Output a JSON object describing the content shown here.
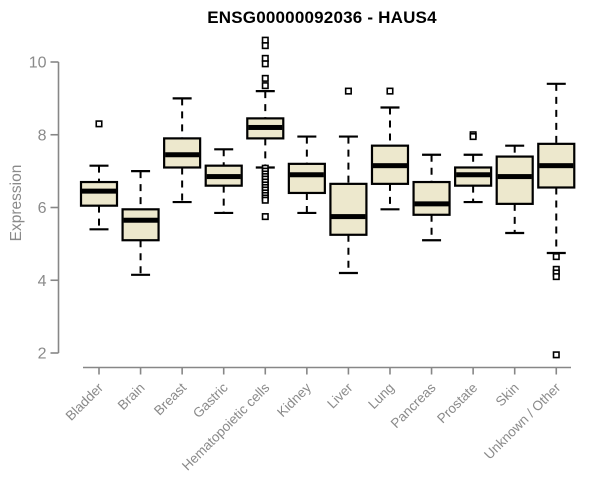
{
  "chart_data": {
    "type": "boxplot",
    "title": "ENSG00000092036 - HAUS4",
    "ylabel": "Expression",
    "xlabel": "",
    "ylim": [
      2,
      10
    ],
    "yticks": [
      2,
      4,
      6,
      8,
      10
    ],
    "grid": false,
    "legend": "none",
    "categories": [
      "Bladder",
      "Brain",
      "Breast",
      "Gastric",
      "Hematopoietic cells",
      "Kidney",
      "Liver",
      "Lung",
      "Pancreas",
      "Prostate",
      "Skin",
      "Unknown / Other"
    ],
    "series": [
      {
        "category": "Bladder",
        "whisker_low": 5.4,
        "q1": 6.05,
        "median": 6.45,
        "q3": 6.7,
        "whisker_high": 7.15,
        "outliers": [
          8.3
        ]
      },
      {
        "category": "Brain",
        "whisker_low": 4.15,
        "q1": 5.1,
        "median": 5.65,
        "q3": 5.95,
        "whisker_high": 7.0,
        "outliers": []
      },
      {
        "category": "Breast",
        "whisker_low": 6.15,
        "q1": 7.1,
        "median": 7.45,
        "q3": 7.9,
        "whisker_high": 9.0,
        "outliers": []
      },
      {
        "category": "Gastric",
        "whisker_low": 5.85,
        "q1": 6.6,
        "median": 6.85,
        "q3": 7.15,
        "whisker_high": 7.6,
        "outliers": []
      },
      {
        "category": "Hematopoietic cells",
        "whisker_low": 7.1,
        "q1": 7.9,
        "median": 8.2,
        "q3": 8.45,
        "whisker_high": 9.2,
        "outliers": [
          10.6,
          10.45,
          10.1,
          9.95,
          9.55,
          9.35,
          7.08,
          7.0,
          6.92,
          6.85,
          6.78,
          6.7,
          6.62,
          6.55,
          6.48,
          6.4,
          6.33,
          6.26,
          6.2,
          5.75
        ]
      },
      {
        "category": "Kidney",
        "whisker_low": 5.85,
        "q1": 6.4,
        "median": 6.9,
        "q3": 7.2,
        "whisker_high": 7.95,
        "outliers": []
      },
      {
        "category": "Liver",
        "whisker_low": 4.2,
        "q1": 5.25,
        "median": 5.75,
        "q3": 6.65,
        "whisker_high": 7.95,
        "outliers": [
          9.2
        ]
      },
      {
        "category": "Lung",
        "whisker_low": 5.95,
        "q1": 6.65,
        "median": 7.15,
        "q3": 7.7,
        "whisker_high": 8.75,
        "outliers": [
          9.2
        ]
      },
      {
        "category": "Pancreas",
        "whisker_low": 5.1,
        "q1": 5.8,
        "median": 6.1,
        "q3": 6.7,
        "whisker_high": 7.45,
        "outliers": []
      },
      {
        "category": "Prostate",
        "whisker_low": 6.15,
        "q1": 6.6,
        "median": 6.9,
        "q3": 7.1,
        "whisker_high": 7.45,
        "outliers": [
          8.0,
          7.95
        ]
      },
      {
        "category": "Skin",
        "whisker_low": 5.3,
        "q1": 6.1,
        "median": 6.85,
        "q3": 7.4,
        "whisker_high": 7.7,
        "outliers": []
      },
      {
        "category": "Unknown / Other",
        "whisker_low": 4.75,
        "q1": 6.55,
        "median": 7.15,
        "q3": 7.75,
        "whisker_high": 9.4,
        "outliers": [
          4.65,
          4.3,
          4.2,
          4.1,
          1.95
        ]
      }
    ],
    "colors": {
      "box_fill": "#EDE8CD",
      "box_stroke": "#000000",
      "median": "#000000",
      "whisker": "#000000",
      "outlier_stroke": "#000000",
      "outlier_fill": "#ffffff",
      "axis_line": "#878787",
      "axis_text": "#8a8a8a",
      "title_text": "#000000"
    }
  }
}
